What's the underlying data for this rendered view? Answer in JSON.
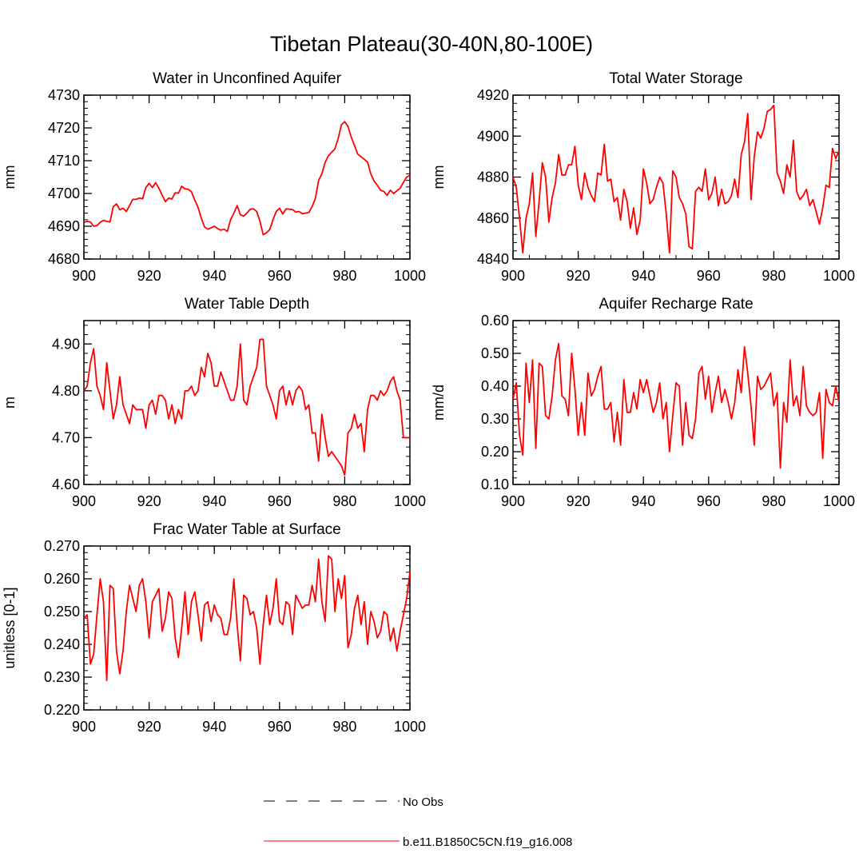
{
  "chart_data": {
    "type": "line",
    "title": "Tibetan Plateau(30-40N,80-100E)",
    "legend": {
      "placement": "bottom-center",
      "entries": [
        {
          "label": "No Obs",
          "style": "dashed",
          "color": "#000000"
        },
        {
          "label": "b.e11.B1850C5CN.f19_g16.008",
          "style": "solid",
          "color": "#ff0000"
        }
      ]
    },
    "panels": [
      {
        "id": "unconfined-aquifer",
        "title": "Water in Unconfined Aquifer",
        "ylabel": "mm",
        "xlim": [
          900,
          1000
        ],
        "ylim": [
          4680,
          4730
        ],
        "xticks": [
          900,
          920,
          940,
          960,
          980,
          1000
        ],
        "xtick_labels": [
          "900",
          "920",
          "940",
          "960",
          "980",
          "1000"
        ],
        "yticks": [
          4680,
          4690,
          4700,
          4710,
          4720,
          4730
        ],
        "ytick_labels": [
          "4680",
          "4690",
          "4700",
          "4710",
          "4720",
          "4730"
        ],
        "x_start": 900,
        "values": [
          4691.2,
          4691.5,
          4691.3,
          4690.0,
          4690.2,
          4691.2,
          4691.8,
          4691.5,
          4691.3,
          4696.0,
          4696.8,
          4695.0,
          4695.5,
          4694.5,
          4696.3,
          4698.2,
          4698.2,
          4698.6,
          4698.4,
          4701.8,
          4703.1,
          4701.8,
          4703.3,
          4701.6,
          4699.5,
          4697.5,
          4698.6,
          4698.3,
          4700.2,
          4700.1,
          4702.2,
          4701.4,
          4701.3,
          4700.5,
          4698.0,
          4695.8,
          4692.5,
          4689.8,
          4689.1,
          4689.5,
          4690.0,
          4689.3,
          4688.8,
          4689.1,
          4688.4,
          4692.0,
          4694.0,
          4696.3,
          4693.5,
          4693.1,
          4694.0,
          4695.2,
          4695.3,
          4694.5,
          4691.5,
          4687.4,
          4688.0,
          4689.0,
          4692.0,
          4694.5,
          4695.5,
          4693.7,
          4695.3,
          4695.2,
          4695.1,
          4694.3,
          4694.5,
          4693.8,
          4694.0,
          4694.2,
          4696.0,
          4698.5,
          4704.0,
          4706.0,
          4709.5,
          4711.5,
          4712.6,
          4713.6,
          4716.8,
          4721.0,
          4721.9,
          4720.5,
          4717.2,
          4714.6,
          4712.0,
          4711.2,
          4710.4,
          4709.6,
          4706.0,
          4703.8,
          4702.5,
          4701.0,
          4700.6,
          4699.4,
          4701.0,
          4700.0,
          4700.8,
          4701.6,
          4703.4,
          4705.0,
          4705.5
        ]
      },
      {
        "id": "total-water-storage",
        "title": "Total Water Storage",
        "ylabel": "mm",
        "xlim": [
          900,
          1000
        ],
        "ylim": [
          4840,
          4920
        ],
        "xticks": [
          900,
          920,
          940,
          960,
          980,
          1000
        ],
        "xtick_labels": [
          "900",
          "920",
          "940",
          "960",
          "980",
          "1000"
        ],
        "yticks": [
          4840,
          4860,
          4880,
          4900,
          4920
        ],
        "ytick_labels": [
          "4840",
          "4860",
          "4880",
          "4900",
          "4920"
        ],
        "x_start": 900,
        "values": [
          4880,
          4875,
          4860,
          4843,
          4860,
          4867,
          4882,
          4851,
          4868,
          4887,
          4880,
          4858,
          4870,
          4877,
          4891,
          4881,
          4881,
          4886,
          4886,
          4895,
          4876,
          4869,
          4882,
          4875,
          4871,
          4868,
          4882,
          4881,
          4896,
          4878,
          4879,
          4868,
          4870,
          4859,
          4874,
          4868,
          4855,
          4865,
          4852,
          4859,
          4884,
          4877,
          4867,
          4869,
          4875,
          4880,
          4877,
          4862,
          4843,
          4883,
          4880,
          4870,
          4867,
          4862,
          4846,
          4845,
          4873,
          4875,
          4873,
          4884,
          4869,
          4872,
          4880,
          4866,
          4874,
          4867,
          4868,
          4871,
          4879,
          4870,
          4891,
          4897,
          4911,
          4869,
          4890,
          4902,
          4899,
          4904,
          4912,
          4913,
          4915,
          4882,
          4878,
          4872,
          4886,
          4880,
          4898,
          4873,
          4869,
          4871,
          4874,
          4866,
          4869,
          4863,
          4857,
          4865,
          4876,
          4875,
          4894,
          4889,
          4893
        ]
      },
      {
        "id": "water-table-depth",
        "title": "Water Table Depth",
        "ylabel": "m",
        "xlim": [
          900,
          1000
        ],
        "ylim": [
          4.6,
          4.95
        ],
        "xticks": [
          900,
          920,
          940,
          960,
          980,
          1000
        ],
        "xtick_labels": [
          "900",
          "920",
          "940",
          "960",
          "980",
          "1000"
        ],
        "yticks": [
          4.6,
          4.7,
          4.8,
          4.9
        ],
        "ytick_labels": [
          "4.60",
          "4.70",
          "4.80",
          "4.90"
        ],
        "x_start": 900,
        "values": [
          4.8,
          4.81,
          4.86,
          4.89,
          4.81,
          4.79,
          4.76,
          4.86,
          4.8,
          4.74,
          4.77,
          4.83,
          4.77,
          4.75,
          4.73,
          4.77,
          4.76,
          4.76,
          4.76,
          4.72,
          4.77,
          4.78,
          4.75,
          4.79,
          4.79,
          4.78,
          4.74,
          4.77,
          4.73,
          4.76,
          4.74,
          4.8,
          4.8,
          4.81,
          4.79,
          4.8,
          4.85,
          4.83,
          4.88,
          4.86,
          4.81,
          4.81,
          4.84,
          4.82,
          4.8,
          4.78,
          4.78,
          4.81,
          4.9,
          4.78,
          4.77,
          4.81,
          4.83,
          4.85,
          4.91,
          4.91,
          4.81,
          4.79,
          4.77,
          4.74,
          4.8,
          4.81,
          4.77,
          4.8,
          4.77,
          4.8,
          4.81,
          4.8,
          4.76,
          4.77,
          4.71,
          4.71,
          4.65,
          4.75,
          4.7,
          4.66,
          4.67,
          4.66,
          4.65,
          4.64,
          4.62,
          4.71,
          4.72,
          4.75,
          4.72,
          4.73,
          4.67,
          4.76,
          4.79,
          4.79,
          4.78,
          4.8,
          4.79,
          4.8,
          4.82,
          4.83,
          4.8,
          4.78,
          4.7,
          4.7,
          4.7
        ]
      },
      {
        "id": "aquifer-recharge-rate",
        "title": "Aquifer Recharge Rate",
        "ylabel": "mm/d",
        "xlim": [
          900,
          1000
        ],
        "ylim": [
          0.1,
          0.6
        ],
        "xticks": [
          900,
          920,
          940,
          960,
          980,
          1000
        ],
        "xtick_labels": [
          "900",
          "920",
          "940",
          "960",
          "980",
          "1000"
        ],
        "yticks": [
          0.1,
          0.2,
          0.3,
          0.4,
          0.5,
          0.6
        ],
        "ytick_labels": [
          "0.10",
          "0.20",
          "0.30",
          "0.40",
          "0.50",
          "0.60"
        ],
        "x_start": 900,
        "values": [
          0.36,
          0.41,
          0.25,
          0.19,
          0.47,
          0.35,
          0.48,
          0.21,
          0.47,
          0.46,
          0.31,
          0.3,
          0.37,
          0.48,
          0.53,
          0.37,
          0.36,
          0.31,
          0.5,
          0.39,
          0.25,
          0.35,
          0.25,
          0.44,
          0.37,
          0.39,
          0.43,
          0.46,
          0.33,
          0.33,
          0.35,
          0.23,
          0.32,
          0.22,
          0.42,
          0.32,
          0.32,
          0.38,
          0.33,
          0.42,
          0.38,
          0.42,
          0.37,
          0.32,
          0.35,
          0.41,
          0.3,
          0.35,
          0.2,
          0.31,
          0.41,
          0.4,
          0.22,
          0.35,
          0.25,
          0.24,
          0.3,
          0.44,
          0.46,
          0.36,
          0.43,
          0.32,
          0.38,
          0.43,
          0.35,
          0.39,
          0.35,
          0.3,
          0.35,
          0.45,
          0.38,
          0.52,
          0.44,
          0.34,
          0.22,
          0.43,
          0.39,
          0.4,
          0.42,
          0.44,
          0.34,
          0.38,
          0.15,
          0.35,
          0.29,
          0.48,
          0.34,
          0.37,
          0.31,
          0.46,
          0.34,
          0.32,
          0.31,
          0.32,
          0.38,
          0.18,
          0.39,
          0.35,
          0.34,
          0.4,
          0.35
        ]
      },
      {
        "id": "frac-water-table",
        "title": "Frac Water Table at Surface",
        "ylabel": "unitless [0-1]",
        "xlim": [
          900,
          1000
        ],
        "ylim": [
          0.22,
          0.27
        ],
        "xticks": [
          900,
          920,
          940,
          960,
          980,
          1000
        ],
        "xtick_labels": [
          "900",
          "920",
          "940",
          "960",
          "980",
          "1000"
        ],
        "yticks": [
          0.22,
          0.23,
          0.24,
          0.25,
          0.26,
          0.27
        ],
        "ytick_labels": [
          "0.220",
          "0.230",
          "0.240",
          "0.250",
          "0.260",
          "0.270"
        ],
        "x_start": 900,
        "values": [
          0.248,
          0.249,
          0.234,
          0.237,
          0.249,
          0.26,
          0.253,
          0.229,
          0.258,
          0.257,
          0.238,
          0.231,
          0.238,
          0.25,
          0.258,
          0.254,
          0.25,
          0.258,
          0.26,
          0.253,
          0.242,
          0.253,
          0.255,
          0.257,
          0.244,
          0.248,
          0.256,
          0.254,
          0.242,
          0.236,
          0.245,
          0.256,
          0.243,
          0.253,
          0.256,
          0.249,
          0.241,
          0.252,
          0.253,
          0.247,
          0.252,
          0.249,
          0.248,
          0.243,
          0.243,
          0.248,
          0.26,
          0.246,
          0.235,
          0.255,
          0.254,
          0.249,
          0.25,
          0.245,
          0.234,
          0.246,
          0.255,
          0.246,
          0.251,
          0.26,
          0.247,
          0.246,
          0.253,
          0.252,
          0.243,
          0.255,
          0.253,
          0.251,
          0.252,
          0.252,
          0.258,
          0.253,
          0.266,
          0.253,
          0.247,
          0.267,
          0.266,
          0.25,
          0.26,
          0.254,
          0.261,
          0.239,
          0.243,
          0.251,
          0.255,
          0.246,
          0.253,
          0.24,
          0.25,
          0.247,
          0.242,
          0.244,
          0.25,
          0.249,
          0.241,
          0.245,
          0.238,
          0.244,
          0.249,
          0.254,
          0.262
        ]
      }
    ]
  }
}
